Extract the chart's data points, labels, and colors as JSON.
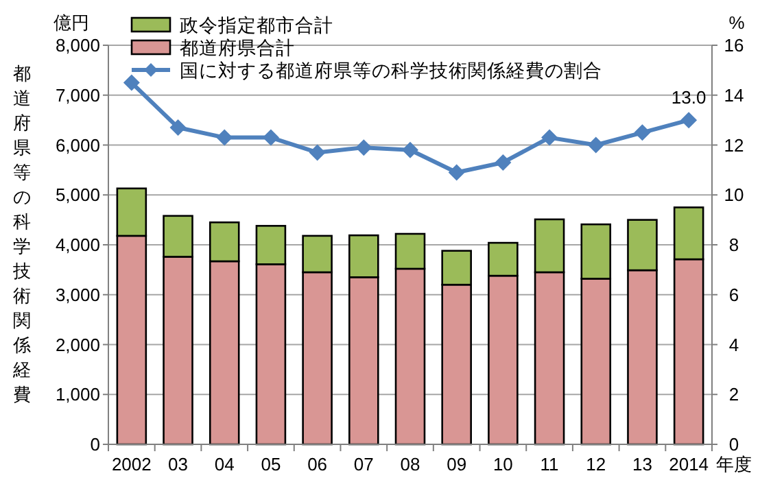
{
  "chart_data": {
    "type": "bar",
    "stacked": true,
    "categories": [
      "2002",
      "03",
      "04",
      "05",
      "06",
      "07",
      "08",
      "09",
      "10",
      "11",
      "12",
      "13",
      "2014"
    ],
    "series": [
      {
        "name": "都道府県合計",
        "color": "#d99694",
        "values": [
          4180,
          3760,
          3670,
          3610,
          3450,
          3350,
          3520,
          3200,
          3380,
          3450,
          3320,
          3490,
          3710
        ]
      },
      {
        "name": "政令指定都市合計",
        "color": "#9bbb59",
        "values": [
          950,
          820,
          780,
          770,
          730,
          840,
          700,
          680,
          660,
          1060,
          1090,
          1010,
          1040
        ]
      },
      {
        "name": "国に対する都道府県等の科学技術関係経費の割合",
        "type": "line",
        "axis": "y2",
        "marker": "diamond",
        "color": "#4f81bd",
        "values": [
          14.5,
          12.7,
          12.3,
          12.3,
          11.7,
          11.9,
          11.8,
          10.9,
          11.3,
          12.3,
          12.0,
          12.5,
          13.0
        ],
        "value_labels": [
          null,
          null,
          null,
          null,
          null,
          null,
          null,
          null,
          null,
          null,
          null,
          null,
          "13.0"
        ]
      }
    ],
    "ylabel": "都道府県等の科学技術関係経費",
    "y2label": "%",
    "xlabel": "年度",
    "annotations": [
      "億円"
    ],
    "ylim": [
      0,
      8000
    ],
    "yticks": [
      {
        "value": 0,
        "label": "0"
      },
      {
        "value": 1000,
        "label": "1,000"
      },
      {
        "value": 2000,
        "label": "2,000"
      },
      {
        "value": 3000,
        "label": "3,000"
      },
      {
        "value": 4000,
        "label": "4,000"
      },
      {
        "value": 5000,
        "label": "5,000"
      },
      {
        "value": 6000,
        "label": "6,000"
      },
      {
        "value": 7000,
        "label": "7,000"
      },
      {
        "value": 8000,
        "label": "8,000"
      }
    ],
    "y2lim": [
      0,
      16
    ],
    "y2ticks": [
      0,
      2,
      4,
      6,
      8,
      10,
      12,
      14,
      16
    ],
    "grid": "y",
    "legend": "top left"
  }
}
